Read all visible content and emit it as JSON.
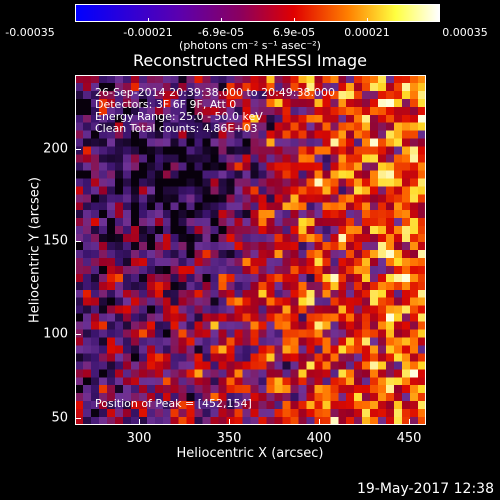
{
  "colorbar": {
    "ticks": [
      "-0.00035",
      "-0.00021",
      "-6.9e-05",
      "6.9e-05",
      "0.00021",
      "0.00035"
    ],
    "units": "(photons cm⁻² s⁻¹ asec⁻²)",
    "colors": [
      "#0000ff",
      "#ff0000",
      "#ffff00",
      "#ffffff"
    ]
  },
  "title": "Reconstructed RHESSI Image",
  "info": {
    "line1": "26-Sep-2014 20:39:38.000 to 20:49:38.000",
    "line2": "Detectors: 3F 6F 9F, Att 0",
    "line3": "Energy Range: 25.0 - 50.0 keV",
    "line4": "Clean     Total counts: 4.86E+03",
    "peak": "Position of Peak = [452,154]"
  },
  "axes": {
    "xlabel": "Heliocentric X (arcsec)",
    "ylabel": "Heliocentric Y (arcsec)",
    "xticks": [
      "300",
      "350",
      "400",
      "450"
    ],
    "yticks": [
      "50",
      "100",
      "150",
      "200"
    ],
    "xrange": [
      265,
      460
    ],
    "yrange": [
      45,
      240
    ]
  },
  "datestamp": "19-May-2017 12:38"
}
